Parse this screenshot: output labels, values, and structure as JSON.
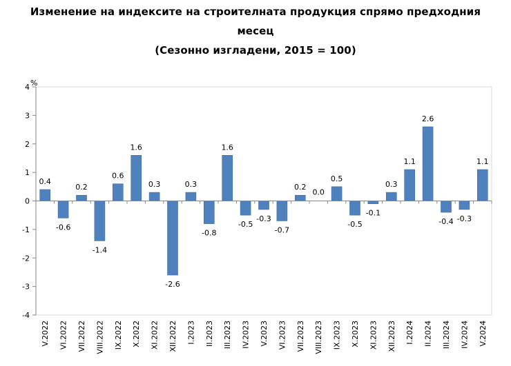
{
  "chart_data": {
    "type": "bar",
    "title_line1": "Изменение на индексите на строителната продукция спрямо предходния",
    "title_line2": "месец",
    "subtitle": "(Сезонно изгладени, 2015 = 100)",
    "ylabel": "%",
    "ylim": [
      -4,
      4
    ],
    "yticks": [
      4,
      3,
      2,
      1,
      0,
      -1,
      -2,
      -3,
      -4
    ],
    "grid": false,
    "categories": [
      "V.2022",
      "VI.2022",
      "VII.2022",
      "VIII.2022",
      "IX.2022",
      "X.2022",
      "XI.2022",
      "XII.2022",
      "I.2023",
      "II.2023",
      "III.2023",
      "IV.2023",
      "V.2023",
      "VI.2023",
      "VII.2023",
      "VIII.2023",
      "IX.2023",
      "X.2023",
      "XI.2023",
      "XII.2023",
      "I.2024",
      "II.2024",
      "III.2024",
      "IV.2024",
      "V.2024"
    ],
    "values": [
      0.4,
      -0.6,
      0.2,
      -1.4,
      0.6,
      1.6,
      0.3,
      -2.6,
      0.3,
      -0.8,
      1.6,
      -0.5,
      -0.3,
      -0.7,
      0.2,
      0.0,
      0.5,
      -0.5,
      -0.1,
      0.3,
      1.1,
      2.6,
      -0.4,
      -0.3,
      1.1
    ],
    "data_labels": [
      "0.4",
      "-0.6",
      "0.2",
      "-1.4",
      "0.6",
      "1.6",
      "0.3",
      "-2.6",
      "0.3",
      "-0.8",
      "1.6",
      "-0.5",
      "-0.3",
      "-0.7",
      "0.2",
      "0.0",
      "0.5",
      "-0.5",
      "-0.1",
      "0.3",
      "1.1",
      "2.6",
      "-0.4",
      "-0.3",
      "1.1"
    ],
    "bar_color": "#4f81bd"
  }
}
